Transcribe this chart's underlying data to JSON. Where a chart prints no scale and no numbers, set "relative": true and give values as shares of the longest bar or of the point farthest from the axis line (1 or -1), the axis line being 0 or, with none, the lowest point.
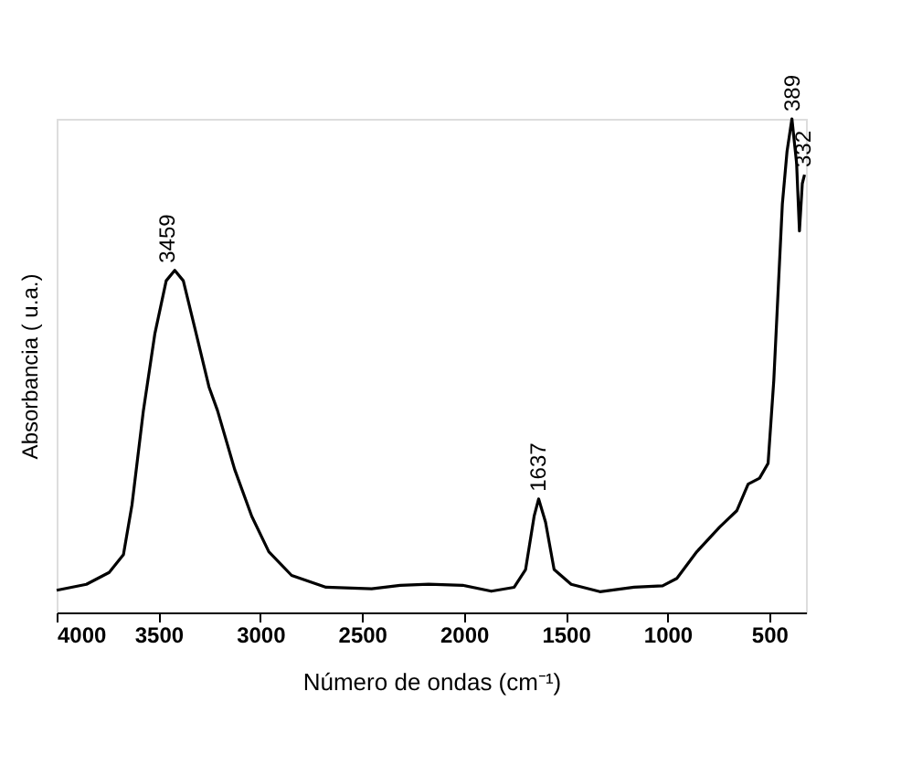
{
  "chart_data": {
    "type": "line",
    "relative": true,
    "xlabel": "Número de ondas (cm⁻¹)",
    "ylabel": "Absorbancia  ( u.a.)",
    "xlim": [
      4000,
      320
    ],
    "xticks": [
      4000,
      3500,
      3000,
      2500,
      2000,
      1500,
      1000,
      500
    ],
    "tick_labels": "x",
    "grid": false,
    "marker": "none",
    "line_style": "solid",
    "series": [
      {
        "color": "#000000",
        "x": [
          4000,
          3854,
          3742,
          3672,
          3630,
          3574,
          3518,
          3462,
          3420,
          3378,
          3322,
          3252,
          3210,
          3126,
          3042,
          2958,
          2846,
          2677,
          2453,
          2313,
          2173,
          2005,
          1865,
          1753,
          1697,
          1655,
          1633,
          1599,
          1557,
          1473,
          1332,
          1164,
          1024,
          954,
          856,
          744,
          660,
          604,
          548,
          506,
          478,
          436,
          413,
          389,
          366,
          352,
          338,
          327
        ],
        "values": [
          0.045,
          0.057,
          0.081,
          0.117,
          0.218,
          0.409,
          0.564,
          0.672,
          0.693,
          0.672,
          0.577,
          0.457,
          0.409,
          0.29,
          0.195,
          0.123,
          0.075,
          0.051,
          0.048,
          0.055,
          0.057,
          0.055,
          0.043,
          0.051,
          0.087,
          0.195,
          0.23,
          0.183,
          0.087,
          0.057,
          0.042,
          0.051,
          0.054,
          0.069,
          0.123,
          0.173,
          0.206,
          0.26,
          0.272,
          0.302,
          0.47,
          0.827,
          0.934,
          1.0,
          0.91,
          0.773,
          0.869,
          0.887
        ]
      }
    ],
    "annotations": [
      {
        "text": "3459",
        "x": 3459,
        "y": 0.693
      },
      {
        "text": "1637",
        "x": 1637,
        "y": 0.23
      },
      {
        "text": "389",
        "x": 389,
        "y": 1.0
      },
      {
        "text": "332",
        "x": 332,
        "y": 0.887
      }
    ]
  }
}
